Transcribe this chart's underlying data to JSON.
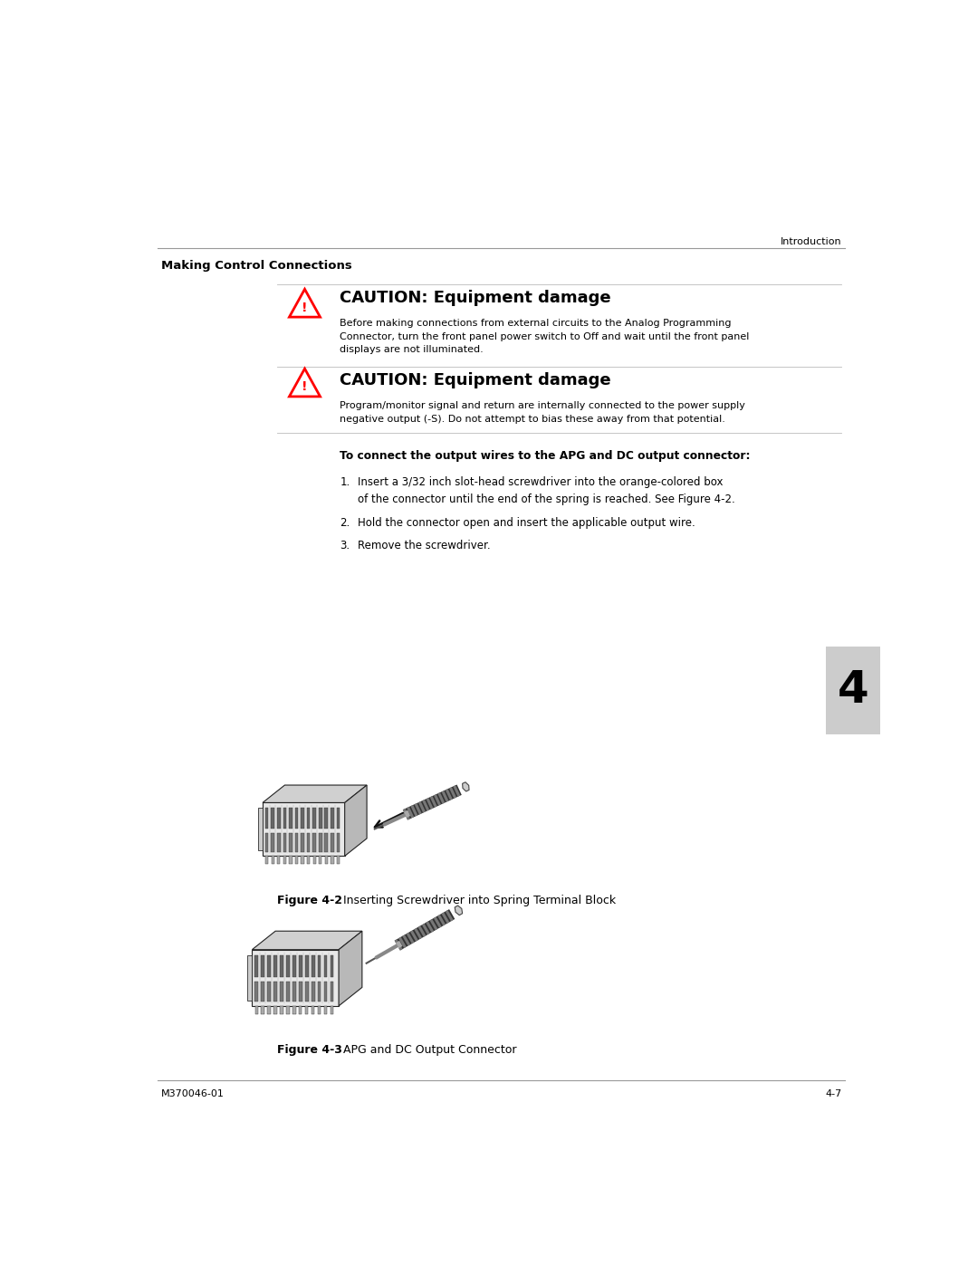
{
  "background_color": "#ffffff",
  "page_width": 10.8,
  "page_height": 13.97,
  "header_text": "Introduction",
  "section_title": "Making Control Connections",
  "caution1_title": "CAUTION: Equipment damage",
  "caution1_body": "Before making connections from external circuits to the Analog Programming\nConnector, turn the front panel power switch to Off and wait until the front panel\ndisplays are not illuminated.",
  "caution2_title": "CAUTION: Equipment damage",
  "caution2_body": "Program/monitor signal and return are internally connected to the power supply\nnegative output (-S). Do not attempt to bias these away from that potential.",
  "procedure_title": "To connect the output wires to the APG and DC output connector:",
  "step1": "Insert a 3/32 inch slot-head screwdriver into the orange-colored box\nof the connector until the end of the spring is reached. See Figure 4-2.",
  "step2": "Hold the connector open and insert the applicable output wire.",
  "step3": "Remove the screwdriver.",
  "fig2_caption_bold": "Figure 4-2",
  "fig2_caption_normal": "  Inserting Screwdriver into Spring Terminal Block",
  "fig3_caption_bold": "Figure 4-3",
  "fig3_caption_normal": "  APG and DC Output Connector",
  "footer_left": "M370046-01",
  "footer_right": "4-7",
  "tab_number": "4",
  "tab_bg": "#cccccc"
}
